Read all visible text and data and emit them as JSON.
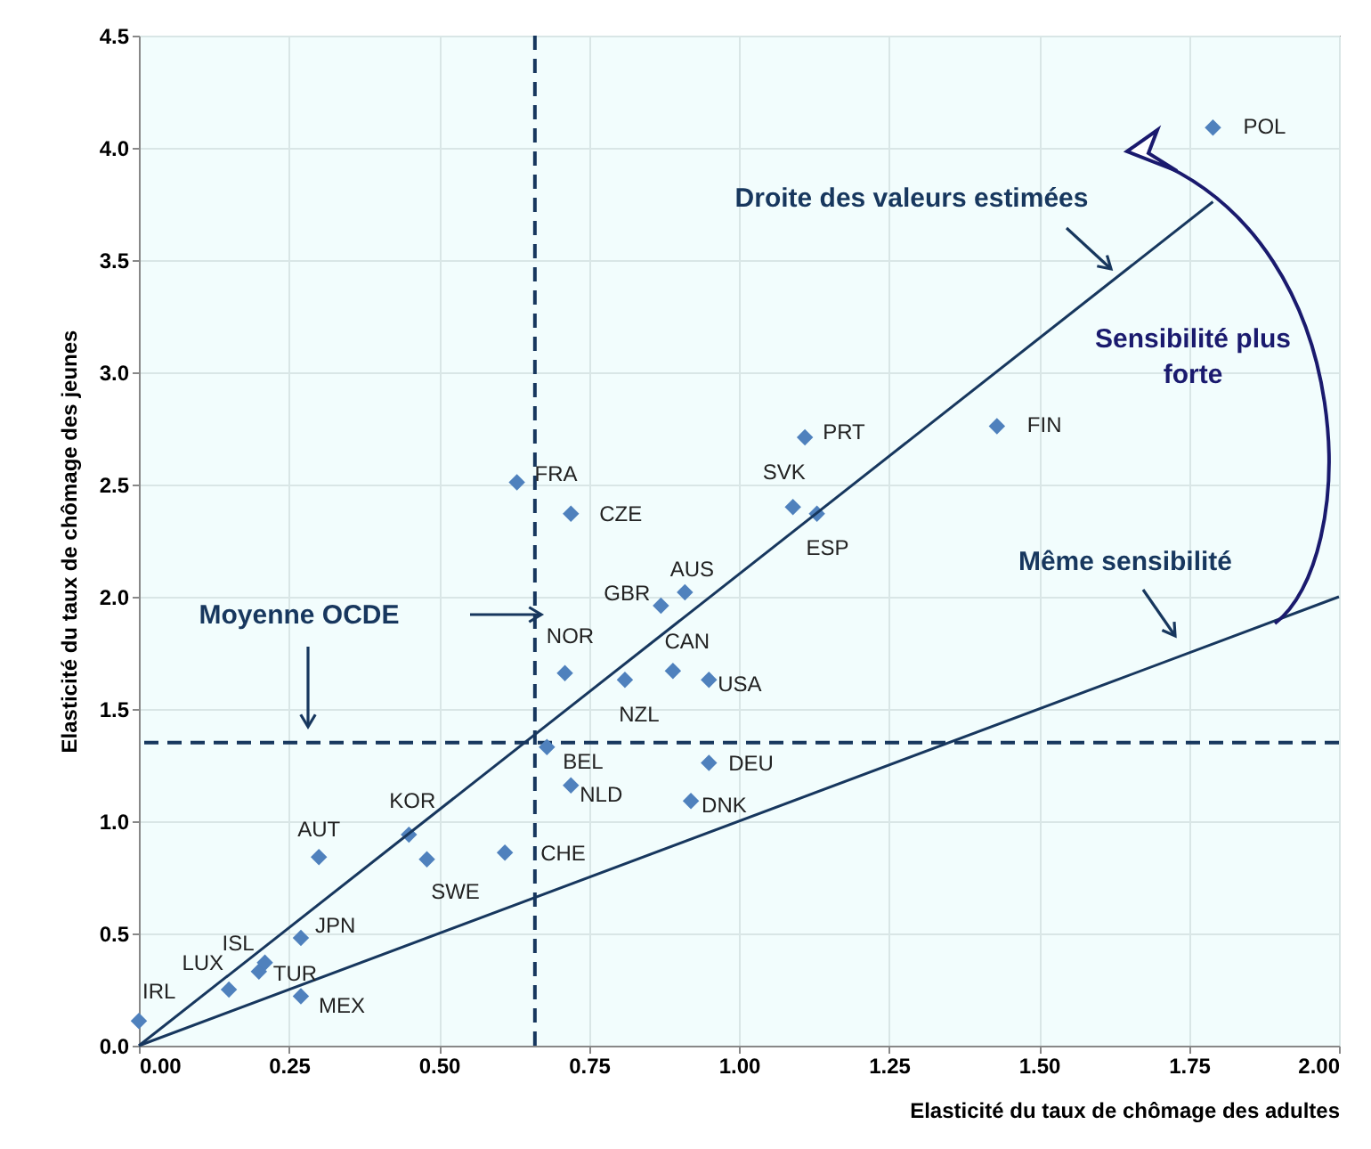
{
  "chart_data": {
    "type": "scatter",
    "xlabel": "Elasticité du taux de chômage des adultes",
    "ylabel": "Elasticité du taux de chômage des jeunes",
    "xlim": [
      0,
      2
    ],
    "ylim": [
      0,
      4.5
    ],
    "xticks": [
      {
        "value": 0,
        "label": "0.00"
      },
      {
        "value": 0.25,
        "label": "0.25"
      },
      {
        "value": 0.5,
        "label": "0.50"
      },
      {
        "value": 0.75,
        "label": "0.75"
      },
      {
        "value": 1,
        "label": "1.00"
      },
      {
        "value": 1.25,
        "label": "1.25"
      },
      {
        "value": 1.5,
        "label": "1.50"
      },
      {
        "value": 1.75,
        "label": "1.75"
      },
      {
        "value": 2,
        "label": "2.00"
      }
    ],
    "yticks": [
      {
        "value": 0,
        "label": "0.0"
      },
      {
        "value": 0.5,
        "label": "0.5"
      },
      {
        "value": 1,
        "label": "1.0"
      },
      {
        "value": 1.5,
        "label": "1.5"
      },
      {
        "value": 2,
        "label": "2.0"
      },
      {
        "value": 2.5,
        "label": "2.5"
      },
      {
        "value": 3,
        "label": "3.0"
      },
      {
        "value": 3.5,
        "label": "3.5"
      },
      {
        "value": 4,
        "label": "4.0"
      },
      {
        "value": 4.5,
        "label": "4.5"
      }
    ],
    "grid": true,
    "series": [
      {
        "color": "#4f81bd",
        "marker": "diamond",
        "x": [
          0.0,
          0.15,
          0.2,
          0.21,
          0.27,
          0.27,
          0.3,
          0.45,
          0.48,
          0.61,
          0.63,
          0.72,
          0.71,
          0.81,
          0.68,
          0.72,
          0.87,
          0.91,
          0.89,
          0.95,
          0.95,
          0.92,
          1.09,
          1.13,
          1.11,
          1.43,
          1.79
        ],
        "values": [
          0.11,
          0.25,
          0.33,
          0.37,
          0.48,
          0.22,
          0.84,
          0.94,
          0.83,
          0.86,
          2.51,
          2.37,
          1.66,
          1.63,
          1.33,
          1.16,
          1.96,
          2.02,
          1.67,
          1.63,
          1.26,
          1.09,
          2.4,
          2.37,
          2.71,
          2.76,
          4.09
        ]
      },
      {
        "type": "line",
        "name": "Droite des valeurs estimées",
        "color": "#17375e",
        "x": [
          0,
          1.79
        ],
        "values": [
          0,
          3.76
        ]
      },
      {
        "type": "line",
        "name": "Même sensibilité",
        "color": "#17375e",
        "x": [
          0,
          2
        ],
        "values": [
          0,
          2
        ]
      }
    ],
    "ref_lines": [
      {
        "axis": "x",
        "value": 0.66,
        "color": "#17375e",
        "line_style": "dashed"
      },
      {
        "axis": "y",
        "value": 1.35,
        "color": "#17375e",
        "line_style": "dashed"
      }
    ],
    "annotations": [
      {
        "text": "IRL",
        "x": 0.0,
        "y": 0.11
      },
      {
        "text": "LUX",
        "x": 0.15,
        "y": 0.25
      },
      {
        "text": "TUR",
        "x": 0.2,
        "y": 0.33
      },
      {
        "text": "ISL",
        "x": 0.21,
        "y": 0.37
      },
      {
        "text": "JPN",
        "x": 0.27,
        "y": 0.48
      },
      {
        "text": "MEX",
        "x": 0.27,
        "y": 0.22
      },
      {
        "text": "AUT",
        "x": 0.3,
        "y": 0.84
      },
      {
        "text": "KOR",
        "x": 0.45,
        "y": 0.94
      },
      {
        "text": "SWE",
        "x": 0.48,
        "y": 0.83
      },
      {
        "text": "CHE",
        "x": 0.61,
        "y": 0.86
      },
      {
        "text": "FRA",
        "x": 0.63,
        "y": 2.51
      },
      {
        "text": "CZE",
        "x": 0.72,
        "y": 2.37
      },
      {
        "text": "NOR",
        "x": 0.71,
        "y": 1.66
      },
      {
        "text": "NZL",
        "x": 0.81,
        "y": 1.63
      },
      {
        "text": "BEL",
        "x": 0.68,
        "y": 1.33
      },
      {
        "text": "NLD",
        "x": 0.72,
        "y": 1.16
      },
      {
        "text": "GBR",
        "x": 0.87,
        "y": 1.96
      },
      {
        "text": "AUS",
        "x": 0.91,
        "y": 2.02
      },
      {
        "text": "CAN",
        "x": 0.89,
        "y": 1.67
      },
      {
        "text": "USA",
        "x": 0.95,
        "y": 1.63
      },
      {
        "text": "DEU",
        "x": 0.95,
        "y": 1.26
      },
      {
        "text": "DNK",
        "x": 0.92,
        "y": 1.09
      },
      {
        "text": "SVK",
        "x": 1.09,
        "y": 2.4
      },
      {
        "text": "ESP",
        "x": 1.13,
        "y": 2.37
      },
      {
        "text": "PRT",
        "x": 1.11,
        "y": 2.71
      },
      {
        "text": "FIN",
        "x": 1.43,
        "y": 2.76
      },
      {
        "text": "POL",
        "x": 1.79,
        "y": 4.09
      },
      "Moyenne OCDE",
      "Sensibilité plus forte"
    ]
  }
}
